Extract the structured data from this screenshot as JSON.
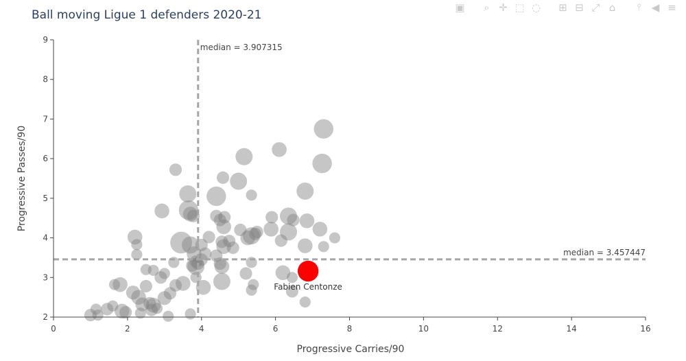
{
  "toolbar": {
    "icons": [
      "camera-icon",
      "zoom-icon",
      "pan-icon",
      "box-select-icon",
      "lasso-icon",
      "zoom-in-icon",
      "zoom-out-icon",
      "autoscale-icon",
      "reset-icon",
      "spike-lines-icon",
      "hover-closest-icon"
    ],
    "icon_color": "#c9c9c9"
  },
  "chart_data": {
    "type": "scatter",
    "title": "Ball moving Ligue 1 defenders 2020-21",
    "xlabel": "Progressive Carries/90",
    "ylabel": "Progressive Passes/90",
    "xlim": [
      0,
      16
    ],
    "ylim": [
      2,
      9
    ],
    "xticks": [
      0,
      2,
      4,
      6,
      8,
      10,
      12,
      14,
      16
    ],
    "yticks": [
      2,
      3,
      4,
      5,
      6,
      7,
      8,
      9
    ],
    "grid": false,
    "legend": "none",
    "colors": {
      "points": "#808080",
      "highlight": "#ff0000",
      "median_line": "#a6a6a6"
    },
    "medians": {
      "x": {
        "value": 3.907315,
        "label": "median = 3.907315"
      },
      "y": {
        "value": 3.457447,
        "label": "median = 3.457447"
      }
    },
    "highlight": {
      "name": "Fabien Centonze",
      "x": 6.88,
      "y": 3.16,
      "size": 3
    },
    "points": [
      {
        "x": 7.3,
        "y": 6.75,
        "size": 3
      },
      {
        "x": 7.26,
        "y": 5.88,
        "size": 3
      },
      {
        "x": 6.1,
        "y": 6.23,
        "size": 2
      },
      {
        "x": 5.15,
        "y": 6.05,
        "size": 2.5
      },
      {
        "x": 3.3,
        "y": 5.72,
        "size": 1.5
      },
      {
        "x": 4.58,
        "y": 5.52,
        "size": 1.5
      },
      {
        "x": 5.0,
        "y": 5.43,
        "size": 2.5
      },
      {
        "x": 3.63,
        "y": 5.11,
        "size": 2.5
      },
      {
        "x": 5.35,
        "y": 5.08,
        "size": 1.2
      },
      {
        "x": 6.8,
        "y": 5.18,
        "size": 2.5
      },
      {
        "x": 4.4,
        "y": 5.05,
        "size": 3
      },
      {
        "x": 2.93,
        "y": 4.68,
        "size": 2
      },
      {
        "x": 3.65,
        "y": 4.7,
        "size": 3
      },
      {
        "x": 3.7,
        "y": 4.6,
        "size": 2
      },
      {
        "x": 3.78,
        "y": 4.55,
        "size": 1.5
      },
      {
        "x": 4.4,
        "y": 4.55,
        "size": 1.5
      },
      {
        "x": 4.5,
        "y": 4.45,
        "size": 1.5
      },
      {
        "x": 4.62,
        "y": 4.52,
        "size": 1.5
      },
      {
        "x": 5.9,
        "y": 4.52,
        "size": 1.5
      },
      {
        "x": 6.35,
        "y": 4.55,
        "size": 2.5
      },
      {
        "x": 6.85,
        "y": 4.43,
        "size": 2
      },
      {
        "x": 6.48,
        "y": 4.45,
        "size": 1.5
      },
      {
        "x": 4.6,
        "y": 4.28,
        "size": 2
      },
      {
        "x": 5.05,
        "y": 4.2,
        "size": 1.5
      },
      {
        "x": 5.5,
        "y": 4.15,
        "size": 1.5
      },
      {
        "x": 5.88,
        "y": 4.22,
        "size": 2
      },
      {
        "x": 6.35,
        "y": 4.15,
        "size": 2.5
      },
      {
        "x": 7.2,
        "y": 4.22,
        "size": 2
      },
      {
        "x": 5.35,
        "y": 4.05,
        "size": 2.5
      },
      {
        "x": 5.25,
        "y": 4.0,
        "size": 2
      },
      {
        "x": 5.45,
        "y": 4.1,
        "size": 1.5
      },
      {
        "x": 4.2,
        "y": 4.02,
        "size": 1.5
      },
      {
        "x": 7.6,
        "y": 4.0,
        "size": 1.2
      },
      {
        "x": 2.2,
        "y": 4.02,
        "size": 2
      },
      {
        "x": 4.55,
        "y": 3.9,
        "size": 1.5
      },
      {
        "x": 4.75,
        "y": 3.92,
        "size": 1.5
      },
      {
        "x": 6.15,
        "y": 3.93,
        "size": 1.5
      },
      {
        "x": 2.25,
        "y": 3.83,
        "size": 1.2
      },
      {
        "x": 3.45,
        "y": 3.88,
        "size": 3.5
      },
      {
        "x": 3.7,
        "y": 3.82,
        "size": 2.5
      },
      {
        "x": 4.0,
        "y": 3.82,
        "size": 1.5
      },
      {
        "x": 4.6,
        "y": 3.78,
        "size": 2
      },
      {
        "x": 4.85,
        "y": 3.75,
        "size": 1.5
      },
      {
        "x": 6.8,
        "y": 3.8,
        "size": 2
      },
      {
        "x": 7.3,
        "y": 3.78,
        "size": 1.2
      },
      {
        "x": 2.25,
        "y": 3.58,
        "size": 1.2
      },
      {
        "x": 3.8,
        "y": 3.6,
        "size": 2
      },
      {
        "x": 4.1,
        "y": 3.6,
        "size": 1.5
      },
      {
        "x": 4.4,
        "y": 3.55,
        "size": 1.5
      },
      {
        "x": 3.85,
        "y": 3.4,
        "size": 1.5
      },
      {
        "x": 4.0,
        "y": 3.45,
        "size": 1.5
      },
      {
        "x": 4.5,
        "y": 3.35,
        "size": 1.5
      },
      {
        "x": 5.35,
        "y": 3.38,
        "size": 1.2
      },
      {
        "x": 3.85,
        "y": 3.28,
        "size": 2.5
      },
      {
        "x": 3.9,
        "y": 3.35,
        "size": 1.5
      },
      {
        "x": 4.55,
        "y": 3.28,
        "size": 2
      },
      {
        "x": 2.5,
        "y": 3.2,
        "size": 1.2
      },
      {
        "x": 2.7,
        "y": 3.18,
        "size": 1.2
      },
      {
        "x": 3.25,
        "y": 3.38,
        "size": 1.2
      },
      {
        "x": 3.75,
        "y": 3.3,
        "size": 1.5
      },
      {
        "x": 2.9,
        "y": 3.0,
        "size": 1.5
      },
      {
        "x": 3.0,
        "y": 3.1,
        "size": 1.2
      },
      {
        "x": 3.85,
        "y": 3.0,
        "size": 1.2
      },
      {
        "x": 5.2,
        "y": 3.1,
        "size": 1.5
      },
      {
        "x": 6.2,
        "y": 3.12,
        "size": 2
      },
      {
        "x": 6.45,
        "y": 3.0,
        "size": 1.2
      },
      {
        "x": 1.65,
        "y": 2.82,
        "size": 1.2
      },
      {
        "x": 1.8,
        "y": 2.82,
        "size": 2
      },
      {
        "x": 2.5,
        "y": 2.78,
        "size": 1.5
      },
      {
        "x": 3.3,
        "y": 2.8,
        "size": 1.5
      },
      {
        "x": 3.5,
        "y": 2.85,
        "size": 2
      },
      {
        "x": 4.05,
        "y": 2.75,
        "size": 2
      },
      {
        "x": 4.55,
        "y": 2.9,
        "size": 2.5
      },
      {
        "x": 5.4,
        "y": 2.82,
        "size": 1.2
      },
      {
        "x": 5.35,
        "y": 2.68,
        "size": 1.2
      },
      {
        "x": 6.45,
        "y": 2.65,
        "size": 1.5
      },
      {
        "x": 2.15,
        "y": 2.62,
        "size": 1.8
      },
      {
        "x": 2.3,
        "y": 2.5,
        "size": 2
      },
      {
        "x": 2.4,
        "y": 2.32,
        "size": 1.8
      },
      {
        "x": 2.6,
        "y": 2.35,
        "size": 1.5
      },
      {
        "x": 2.7,
        "y": 2.3,
        "size": 2
      },
      {
        "x": 3.0,
        "y": 2.48,
        "size": 1.8
      },
      {
        "x": 3.15,
        "y": 2.6,
        "size": 1.5
      },
      {
        "x": 6.8,
        "y": 2.38,
        "size": 1.2
      },
      {
        "x": 1.45,
        "y": 2.2,
        "size": 1.5
      },
      {
        "x": 1.6,
        "y": 2.28,
        "size": 1.2
      },
      {
        "x": 1.85,
        "y": 2.15,
        "size": 2
      },
      {
        "x": 1.95,
        "y": 2.12,
        "size": 1.5
      },
      {
        "x": 2.35,
        "y": 2.1,
        "size": 1.2
      },
      {
        "x": 2.65,
        "y": 2.18,
        "size": 1.5
      },
      {
        "x": 2.8,
        "y": 2.22,
        "size": 1.2
      },
      {
        "x": 1.15,
        "y": 2.2,
        "size": 1.2
      },
      {
        "x": 1.0,
        "y": 2.05,
        "size": 1.5
      },
      {
        "x": 1.2,
        "y": 2.05,
        "size": 1.2
      },
      {
        "x": 3.1,
        "y": 2.02,
        "size": 1.2
      },
      {
        "x": 3.7,
        "y": 2.08,
        "size": 1.2
      }
    ]
  }
}
